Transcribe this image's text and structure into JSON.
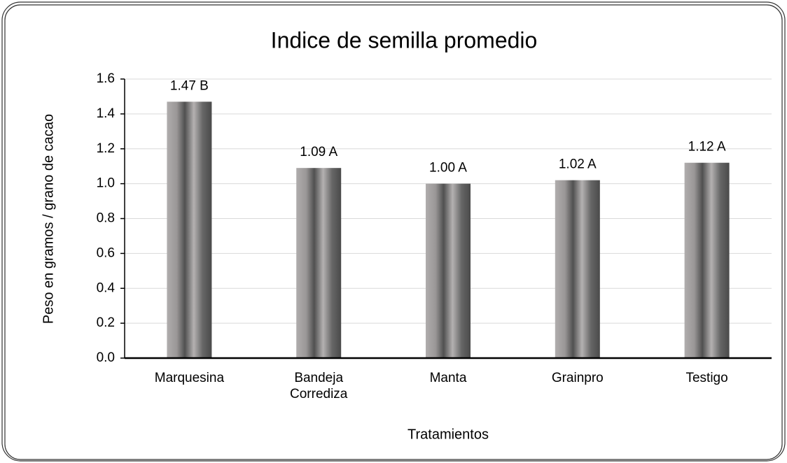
{
  "chart_data": {
    "type": "bar",
    "title": "Indice de semilla promedio",
    "x_label": "Tratamientos",
    "y_label": "Peso en gramos / grano de cacao",
    "categories": [
      "Marquesina",
      "Bandeja Corrediza",
      "Manta",
      "Grainpro",
      "Testigo"
    ],
    "values": [
      1.47,
      1.09,
      1.0,
      1.02,
      1.12
    ],
    "value_labels": [
      "1.47 B",
      "1.09 A",
      "1.00 A",
      "1.02 A",
      "1.12 A"
    ],
    "color": "#8a8787",
    "ylim": [
      0,
      1.6
    ],
    "yticks": [
      {
        "value": 0,
        "label": "0.0"
      },
      0.2,
      0.4,
      0.6,
      0.8,
      {
        "value": 1,
        "label": "1.0"
      },
      1.2,
      1.4,
      1.6
    ],
    "grid": true
  }
}
